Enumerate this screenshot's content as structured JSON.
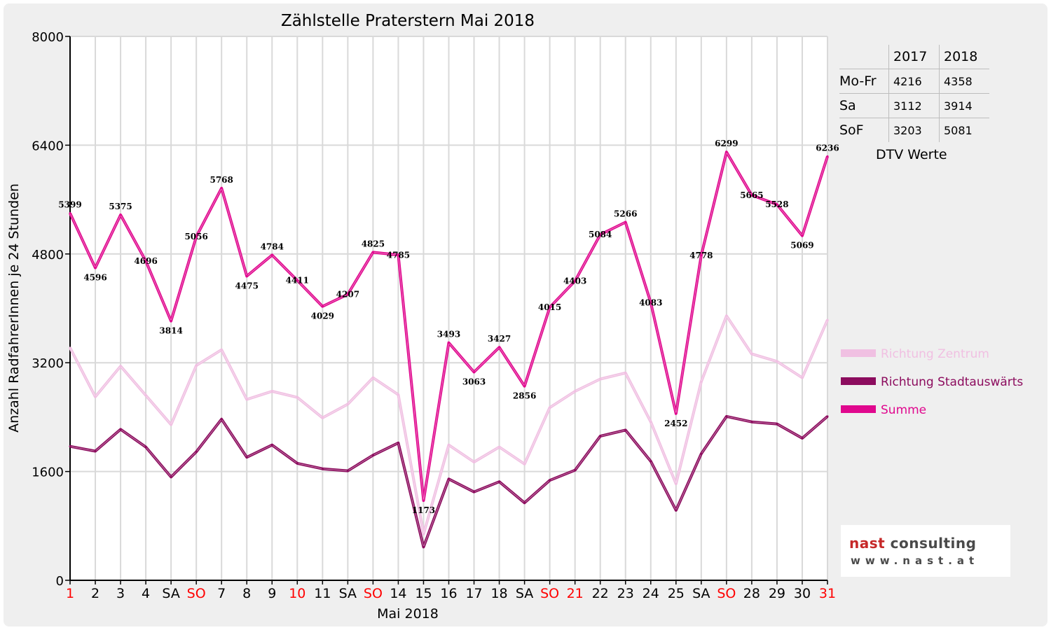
{
  "chart_data": {
    "type": "line",
    "title": "Zählstelle Praterstern Mai 2018",
    "xlabel": "Mai 2018",
    "ylabel": "Anzahl RadfahrerInnen je 24 Stunden",
    "ylim": [
      0,
      8000
    ],
    "yticks": [
      "0",
      "1600",
      "3200",
      "4800",
      "6400",
      "8000"
    ],
    "grid": true,
    "legend_position": "right",
    "categories": [
      "1",
      "2",
      "3",
      "4",
      "SA",
      "SO",
      "7",
      "8",
      "9",
      "10",
      "11",
      "SA",
      "SO",
      "14",
      "15",
      "16",
      "17",
      "18",
      "SA",
      "SO",
      "21",
      "22",
      "23",
      "24",
      "25",
      "SA",
      "SO",
      "28",
      "29",
      "30",
      "31"
    ],
    "red_categories": [
      "1",
      "SO",
      "10",
      "21",
      "31"
    ],
    "series": [
      {
        "name": "Richtung Zentrum",
        "color": "#f0c0e2",
        "values": [
          3420,
          2700,
          3150,
          2720,
          2290,
          3160,
          3390,
          2660,
          2780,
          2690,
          2390,
          2590,
          2980,
          2730,
          680,
          1990,
          1740,
          1960,
          1710,
          2540,
          2780,
          2960,
          3050,
          2330,
          1420,
          2920,
          3890,
          3330,
          3220,
          2980,
          3830
        ]
      },
      {
        "name": "Richtung Stadtauswärts",
        "color": "#8c0c5e",
        "values": [
          1970,
          1900,
          2220,
          1960,
          1520,
          1890,
          2370,
          1810,
          1990,
          1720,
          1640,
          1610,
          1840,
          2020,
          490,
          1490,
          1300,
          1450,
          1140,
          1470,
          1620,
          2120,
          2210,
          1750,
          1030,
          1860,
          2410,
          2330,
          2300,
          2090,
          2410
        ]
      },
      {
        "name": "Summe",
        "color": "#e0088e",
        "values": [
          5399,
          4596,
          5375,
          4696,
          3814,
          5056,
          5768,
          4475,
          4784,
          4411,
          4029,
          4207,
          4825,
          4785,
          1173,
          3493,
          3063,
          3427,
          2856,
          4015,
          4403,
          5084,
          5266,
          4083,
          2452,
          4778,
          6299,
          5665,
          5528,
          5069,
          6236
        ]
      }
    ]
  },
  "dtv": {
    "headers": [
      "",
      "2017",
      "2018"
    ],
    "rows": [
      {
        "label": "Mo-Fr",
        "y2017": "4216",
        "y2018": "4358"
      },
      {
        "label": "Sa",
        "y2017": "3112",
        "y2018": "3914"
      },
      {
        "label": "SoF",
        "y2017": "3203",
        "y2018": "5081"
      }
    ],
    "caption": "DTV Werte"
  },
  "logo": {
    "name_part1": "nast",
    "name_part2": " consulting",
    "url": "www.nast.at"
  }
}
